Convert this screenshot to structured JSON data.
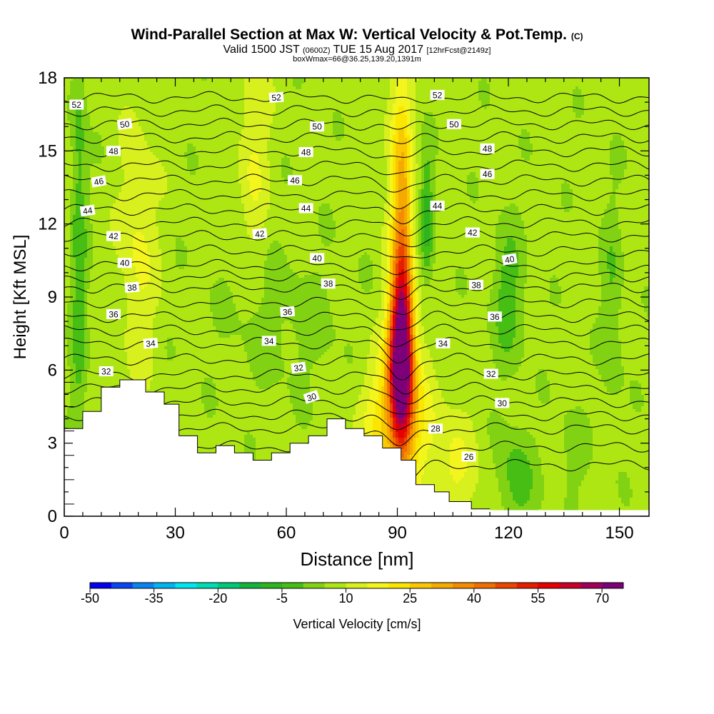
{
  "header": {
    "title_main": "Wind-Parallel Section at Max W: Vertical Velocity & Pot.Temp.",
    "title_copyright": "(C)",
    "valid_prefix": "Valid 1500 JST",
    "valid_utc": "(0600Z)",
    "valid_date": "TUE 15 Aug 2017",
    "valid_fcst": "[12hrFcst@2149z]",
    "box_info": "boxWmax=66@36.25,139.20,1391m"
  },
  "chart_data": {
    "type": "heatmap",
    "xlabel": "Distance [nm]",
    "ylabel": "Height [Kft MSL]",
    "xlim": [
      0,
      158
    ],
    "ylim": [
      0,
      18
    ],
    "x_ticks": [
      "0",
      "30",
      "60",
      "90",
      "120",
      "150"
    ],
    "y_ticks": [
      "0",
      "3",
      "6",
      "9",
      "12",
      "15",
      "18"
    ],
    "colorbar": {
      "label": "Vertical Velocity [cm/s]",
      "tick_labels": [
        "-50",
        "-35",
        "-20",
        "-5",
        "10",
        "25",
        "40",
        "55",
        "70"
      ],
      "min": -50,
      "max": 75,
      "step": 5,
      "colors": [
        "#0000f0",
        "#0a46f0",
        "#0a82f0",
        "#00b4f0",
        "#00e6f0",
        "#00dcb4",
        "#00c878",
        "#14b43c",
        "#2eb41e",
        "#46be14",
        "#82d214",
        "#aee614",
        "#d8f01e",
        "#f5f51e",
        "#fae600",
        "#fac800",
        "#f5aa00",
        "#f58c00",
        "#f06e00",
        "#eb4600",
        "#e61e00",
        "#e60000",
        "#c80028",
        "#a0005a",
        "#7d0078"
      ]
    },
    "terrain_kft": [
      [
        0,
        3.6
      ],
      [
        5,
        3.6
      ],
      [
        5,
        4.3
      ],
      [
        10,
        4.3
      ],
      [
        10,
        5.3
      ],
      [
        15,
        5.3
      ],
      [
        15,
        5.6
      ],
      [
        22,
        5.6
      ],
      [
        22,
        5.1
      ],
      [
        27,
        5.1
      ],
      [
        27,
        4.6
      ],
      [
        31,
        4.6
      ],
      [
        31,
        3.3
      ],
      [
        36,
        3.3
      ],
      [
        36,
        2.6
      ],
      [
        41,
        2.6
      ],
      [
        41,
        2.9
      ],
      [
        46,
        2.9
      ],
      [
        46,
        2.6
      ],
      [
        51,
        2.6
      ],
      [
        51,
        2.3
      ],
      [
        56,
        2.3
      ],
      [
        56,
        2.6
      ],
      [
        61,
        2.6
      ],
      [
        61,
        3.0
      ],
      [
        66,
        3.0
      ],
      [
        66,
        3.3
      ],
      [
        71,
        3.3
      ],
      [
        71,
        4.0
      ],
      [
        76,
        4.0
      ],
      [
        76,
        3.6
      ],
      [
        81,
        3.6
      ],
      [
        81,
        3.3
      ],
      [
        86,
        3.3
      ],
      [
        86,
        2.8
      ],
      [
        91,
        2.8
      ],
      [
        91,
        2.3
      ],
      [
        95,
        2.3
      ],
      [
        95,
        1.3
      ],
      [
        100,
        1.3
      ],
      [
        100,
        1.0
      ],
      [
        104,
        1.0
      ],
      [
        104,
        0.6
      ],
      [
        110,
        0.6
      ],
      [
        110,
        0.3
      ],
      [
        115,
        0.3
      ]
    ],
    "velocity_field": {
      "background": 7,
      "features": [
        {
          "x": 91,
          "y": 6.5,
          "sx": 2.2,
          "sy": 2.4,
          "amp": 70
        },
        {
          "x": 91.5,
          "y": 11,
          "sx": 1.8,
          "sy": 4,
          "amp": 22
        },
        {
          "x": 90,
          "y": 4,
          "sx": 6,
          "sy": 2,
          "amp": 20
        },
        {
          "x": 90,
          "y": 15,
          "sx": 2.5,
          "sy": 4,
          "amp": 8
        },
        {
          "x": 20,
          "y": 11,
          "sx": 3.5,
          "sy": 3.5,
          "amp": 9
        },
        {
          "x": 51,
          "y": 15,
          "sx": 3,
          "sy": 3,
          "amp": 8
        },
        {
          "x": 105,
          "y": 1.8,
          "sx": 5,
          "sy": 1.8,
          "amp": 8
        },
        {
          "x": 4,
          "y": 11,
          "sx": 1.5,
          "sy": 8,
          "amp": -10
        },
        {
          "x": 98,
          "y": 12.3,
          "sx": 1.2,
          "sy": 1.8,
          "amp": -14
        },
        {
          "x": 120,
          "y": 9,
          "sx": 3,
          "sy": 2,
          "amp": -10
        },
        {
          "x": 122,
          "y": 1.5,
          "sx": 3.5,
          "sy": 1.5,
          "amp": -10
        },
        {
          "x": 60,
          "y": 8,
          "sx": 12,
          "sy": 2,
          "amp": -4
        },
        {
          "x": 148,
          "y": 8.5,
          "sx": 2,
          "sy": 3,
          "amp": -7
        },
        {
          "x": 137,
          "y": 2.5,
          "sx": 3,
          "sy": 1.5,
          "amp": -4
        }
      ]
    },
    "theta_contours": [
      {
        "value": 26,
        "base_kft": 2.1
      },
      {
        "value": 28,
        "base_kft": 3.6
      },
      {
        "value": 30,
        "base_kft": 4.7
      },
      {
        "value": 32,
        "base_kft": 5.8
      },
      {
        "value": 34,
        "base_kft": 7.1
      },
      {
        "value": 36,
        "base_kft": 8.2
      },
      {
        "value": 38,
        "base_kft": 9.4
      },
      {
        "value": 40,
        "base_kft": 10.3
      },
      {
        "value": 42,
        "base_kft": 11.5
      },
      {
        "value": 44,
        "base_kft": 12.6
      },
      {
        "value": 46,
        "base_kft": 13.8
      },
      {
        "value": 48,
        "base_kft": 15.0
      },
      {
        "value": 50,
        "base_kft": 16.1
      },
      {
        "value": 52,
        "base_kft": 17.2
      }
    ],
    "contour_labels": [
      {
        "text": "52",
        "x": 1,
        "y": 16.9,
        "rot": 0
      },
      {
        "text": "52",
        "x": 55,
        "y": 17.2,
        "rot": -4
      },
      {
        "text": "52",
        "x": 98.5,
        "y": 17.3,
        "rot": 0
      },
      {
        "text": "50",
        "x": 14,
        "y": 16.1,
        "rot": -8
      },
      {
        "text": "50",
        "x": 66,
        "y": 16.0,
        "rot": 0
      },
      {
        "text": "50",
        "x": 103,
        "y": 16.1,
        "rot": 0
      },
      {
        "text": "48",
        "x": 11,
        "y": 15.0,
        "rot": 0
      },
      {
        "text": "48",
        "x": 63,
        "y": 14.95,
        "rot": 0
      },
      {
        "text": "48",
        "x": 112,
        "y": 15.1,
        "rot": 0
      },
      {
        "text": "46",
        "x": 7,
        "y": 13.75,
        "rot": -10
      },
      {
        "text": "46",
        "x": 60,
        "y": 13.8,
        "rot": 0
      },
      {
        "text": "46",
        "x": 112,
        "y": 14.05,
        "rot": 0
      },
      {
        "text": "44",
        "x": 4,
        "y": 12.55,
        "rot": -8
      },
      {
        "text": "44",
        "x": 63,
        "y": 12.65,
        "rot": 0
      },
      {
        "text": "44",
        "x": 98.5,
        "y": 12.75,
        "rot": 0
      },
      {
        "text": "42",
        "x": 11,
        "y": 11.5,
        "rot": 0
      },
      {
        "text": "42",
        "x": 50.5,
        "y": 11.6,
        "rot": -6
      },
      {
        "text": "42",
        "x": 108,
        "y": 11.65,
        "rot": 0
      },
      {
        "text": "40",
        "x": 14,
        "y": 10.4,
        "rot": 0
      },
      {
        "text": "40",
        "x": 66,
        "y": 10.6,
        "rot": 0
      },
      {
        "text": "40",
        "x": 118,
        "y": 10.55,
        "rot": -10
      },
      {
        "text": "38",
        "x": 16,
        "y": 9.4,
        "rot": -5
      },
      {
        "text": "38",
        "x": 69,
        "y": 9.55,
        "rot": 0
      },
      {
        "text": "38",
        "x": 109,
        "y": 9.5,
        "rot": 0
      },
      {
        "text": "36",
        "x": 11,
        "y": 8.3,
        "rot": 0
      },
      {
        "text": "36",
        "x": 58,
        "y": 8.4,
        "rot": -4
      },
      {
        "text": "36",
        "x": 114,
        "y": 8.2,
        "rot": 0
      },
      {
        "text": "34",
        "x": 21,
        "y": 7.1,
        "rot": -5
      },
      {
        "text": "34",
        "x": 53,
        "y": 7.2,
        "rot": 0
      },
      {
        "text": "34",
        "x": 100,
        "y": 7.1,
        "rot": 0
      },
      {
        "text": "32",
        "x": 9,
        "y": 5.95,
        "rot": 0
      },
      {
        "text": "32",
        "x": 61,
        "y": 6.1,
        "rot": -8
      },
      {
        "text": "32",
        "x": 113,
        "y": 5.85,
        "rot": 0
      },
      {
        "text": "30",
        "x": 64.5,
        "y": 4.9,
        "rot": -18
      },
      {
        "text": "30",
        "x": 116,
        "y": 4.65,
        "rot": 0
      },
      {
        "text": "28",
        "x": 98,
        "y": 3.6,
        "rot": 0
      },
      {
        "text": "26",
        "x": 107,
        "y": 2.45,
        "rot": 0
      }
    ]
  }
}
